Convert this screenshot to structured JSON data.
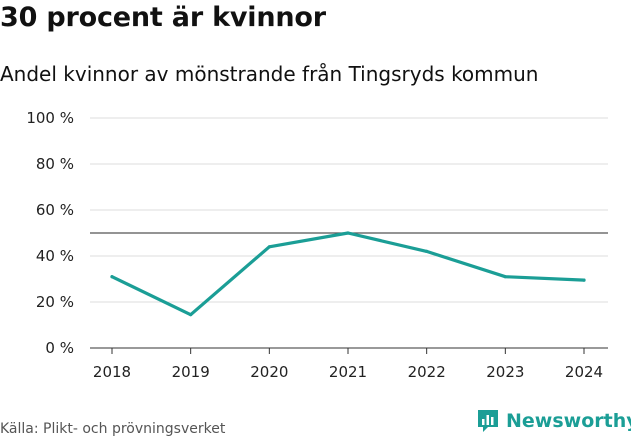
{
  "chart_data": {
    "type": "line",
    "title": "30 procent är kvinnor",
    "subtitle": "Andel kvinnor av mönstrande från Tingsryds kommun",
    "categories": [
      "2018",
      "2019",
      "2020",
      "2021",
      "2022",
      "2023",
      "2024"
    ],
    "series": [
      {
        "values": [
          31,
          14.5,
          44,
          50,
          42,
          31,
          29.5
        ]
      }
    ],
    "reference_line": 50,
    "ylim": [
      0,
      100
    ],
    "yticks": [
      0,
      20,
      40,
      60,
      80,
      100
    ],
    "ytick_labels": [
      "0 %",
      "20 %",
      "40 %",
      "60 %",
      "80 %",
      "100 %"
    ],
    "grid": true,
    "line_color": "#1b9e96"
  },
  "source": "Källa: Plikt- och prövningsverket",
  "brand": {
    "name": "Newsworthy",
    "icon": "bar-chart-logo-icon",
    "color": "#1b9e96"
  }
}
